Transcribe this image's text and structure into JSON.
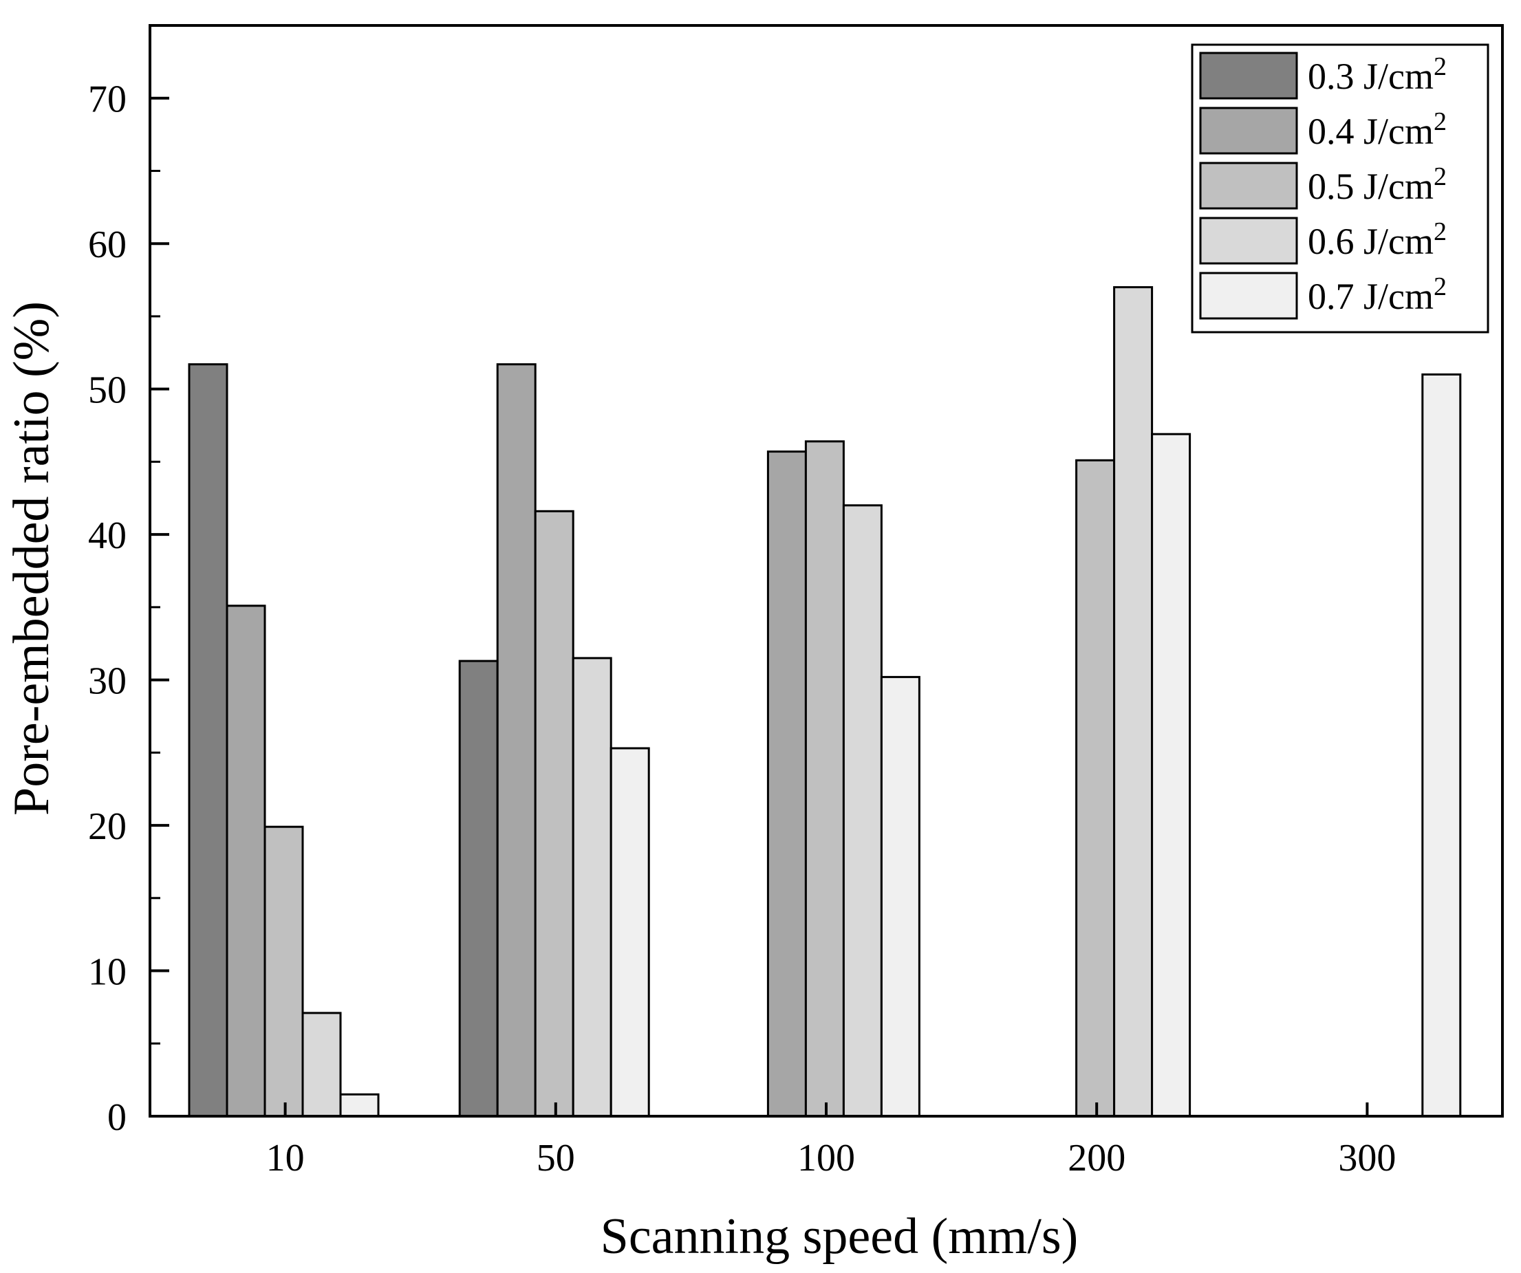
{
  "chart_data": {
    "type": "bar",
    "title": "",
    "xlabel": "Scanning speed (mm/s)",
    "ylabel": "Pore-embedded ratio (%)",
    "categories": [
      "10",
      "50",
      "100",
      "200",
      "300"
    ],
    "ylim": [
      0,
      75
    ],
    "yticks": [
      0,
      10,
      20,
      30,
      40,
      50,
      60,
      70
    ],
    "grid": false,
    "legend_position": "top-right",
    "series": [
      {
        "name": "0.3 J/cm",
        "sup": "2",
        "color": "#808080",
        "values": [
          51.7,
          31.3,
          null,
          null,
          null
        ]
      },
      {
        "name": "0.4 J/cm",
        "sup": "2",
        "color": "#a6a6a6",
        "values": [
          35.1,
          51.7,
          45.7,
          null,
          null
        ]
      },
      {
        "name": "0.5 J/cm",
        "sup": "2",
        "color": "#c0c0c0",
        "values": [
          19.9,
          41.6,
          46.4,
          45.1,
          null
        ]
      },
      {
        "name": "0.6 J/cm",
        "sup": "2",
        "color": "#d9d9d9",
        "values": [
          7.1,
          31.5,
          42.0,
          57.0,
          null
        ]
      },
      {
        "name": "0.7 J/cm",
        "sup": "2",
        "color": "#f0f0f0",
        "values": [
          1.5,
          25.3,
          30.2,
          46.9,
          51.0
        ]
      }
    ]
  }
}
